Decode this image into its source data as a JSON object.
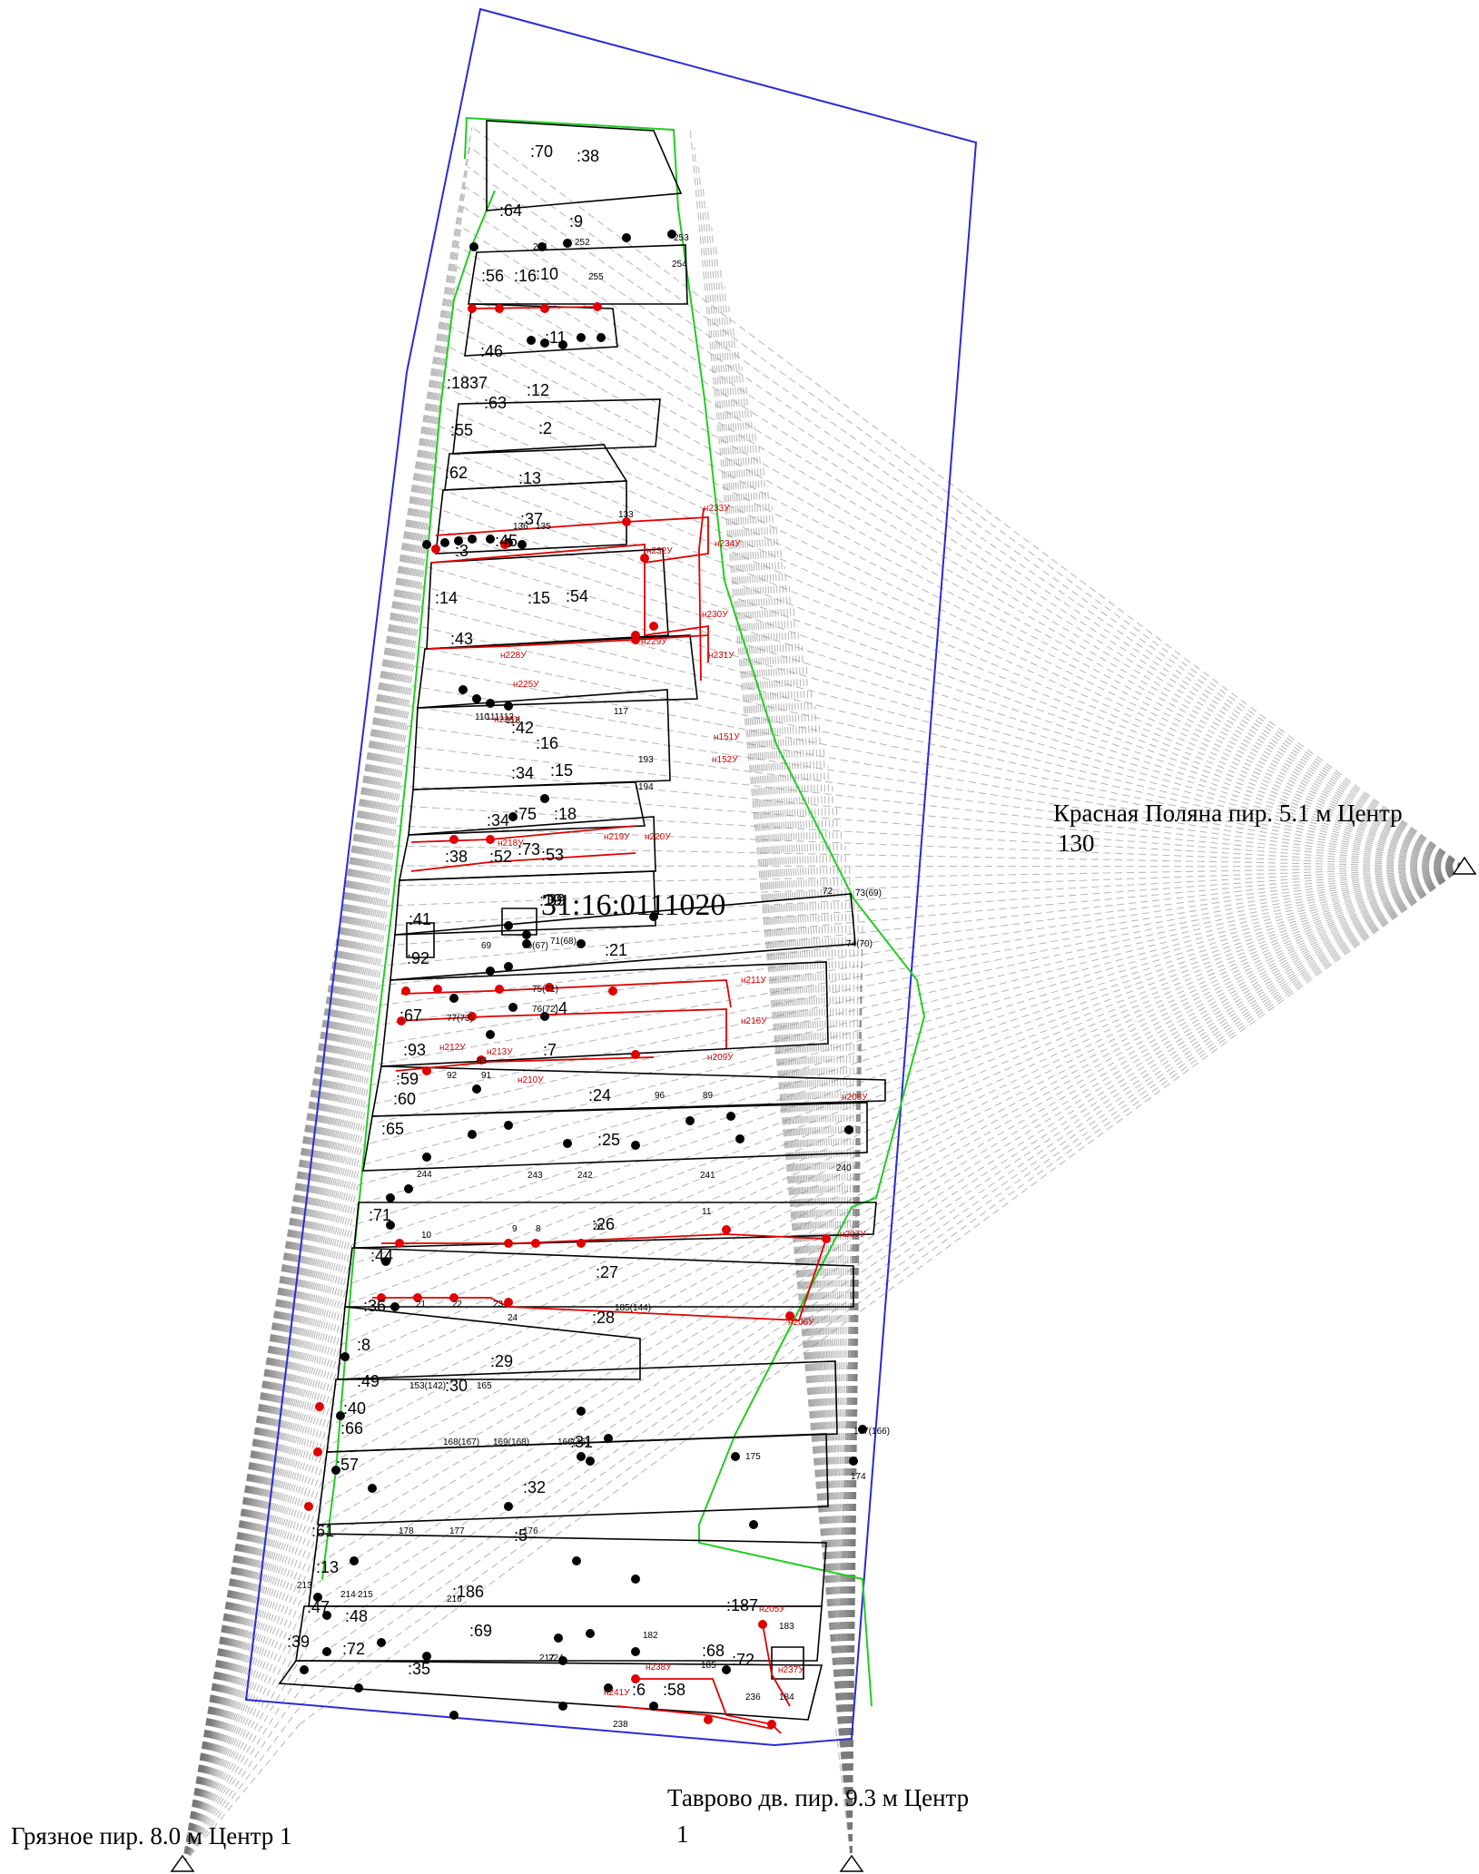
{
  "colors": {
    "boundary_blue": "#2a2ad8",
    "green_line": "#22cc22",
    "parcel_black": "#000000",
    "new_red": "#e00000",
    "sightline_gray": "#777777"
  },
  "stations": [
    {
      "line1": "Красная Поляна пир. 5.1 м Центр",
      "line2": "130"
    },
    {
      "line1": "Таврово дв. пир. 9.3 м Центр",
      "line2": "1"
    },
    {
      "line1": "Грязное пир. 8.0 м Центр 1",
      "line2": ""
    }
  ],
  "cadastral_number": "31:16:0111020",
  "parcel_labels": [
    ":70",
    ":38",
    ":64",
    ":9",
    ":56",
    ":16",
    ":10",
    ":11",
    ":46",
    ":18",
    ":37",
    ":12",
    ":63",
    ":55",
    ":2",
    ":62",
    ":13",
    ":37",
    ":45",
    ":3",
    ":54",
    ":14",
    ":43",
    ":15",
    ":42",
    ":16",
    ":15",
    ":34",
    ":34",
    ":75",
    ":18",
    ":52",
    ":73",
    ":53",
    ":38",
    ":39",
    ":41",
    ":19",
    ":21",
    ":92",
    ":4",
    ":67",
    ":93",
    ":7",
    ":59",
    ":60",
    ":24",
    ":65",
    ":25",
    ":71",
    ":26",
    ":44",
    ":27",
    ":36",
    ":28",
    ":8",
    ":29",
    ":49",
    ":30",
    ":40",
    ":66",
    ":31",
    ":57",
    ":32",
    ":61",
    ":5",
    ":13",
    ":186",
    ":47",
    ":48",
    ":187",
    ":69",
    ":39",
    ":72",
    ":68",
    ":72",
    ":35",
    ":6",
    ":58"
  ],
  "point_labels": [
    "251",
    "252",
    "253",
    "254",
    "255",
    "133",
    "135",
    "136",
    "117",
    "193",
    "194",
    "110",
    "111",
    "112",
    "118",
    "69",
    "70(67)",
    "71(68)",
    "72",
    "73(69)",
    "74(70)",
    "75(71)",
    "76(72)",
    "77(73)",
    "83",
    "92",
    "91",
    "96",
    "89",
    "240",
    "244",
    "243",
    "242",
    "241",
    "11",
    "10",
    "9",
    "8",
    "20",
    "21",
    "22",
    "23",
    "24",
    "185(144)",
    "153(142)",
    "165",
    "169(168)",
    "168(167)",
    "166(45)",
    "167(166)",
    "174",
    "175",
    "176",
    "177",
    "178",
    "213",
    "214",
    "215",
    "216",
    "182",
    "183",
    "184",
    "185",
    "217",
    "224",
    "236",
    "238"
  ],
  "red_labels": [
    "н233У",
    "н234У",
    "н232У",
    "н230У",
    "н229У",
    "н231У",
    "н228У",
    "н225У",
    "н226У",
    "н151У",
    "н152У",
    "н219У",
    "н220У",
    "н218У",
    "н211У",
    "н216У",
    "н212У",
    "н213У",
    "н210У",
    "н209У",
    "н208У",
    "н207У",
    "н206У",
    "н205У",
    "н237У",
    "н238У",
    "н241У"
  ]
}
